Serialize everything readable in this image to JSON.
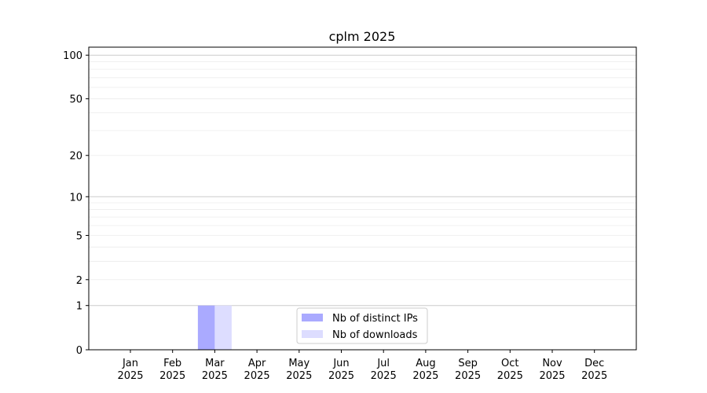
{
  "chart_data": {
    "type": "bar",
    "title": "cplm 2025",
    "xlabel": "",
    "ylabel": "",
    "y_scale": "log(1+y)",
    "ylim": [
      0,
      113
    ],
    "grid": "horizontal, major and minor",
    "legend": "lower-center",
    "categories": [
      "Jan\n2025",
      "Feb\n2025",
      "Mar\n2025",
      "Apr\n2025",
      "May\n2025",
      "Jun\n2025",
      "Jul\n2025",
      "Aug\n2025",
      "Sep\n2025",
      "Oct\n2025",
      "Nov\n2025",
      "Dec\n2025"
    ],
    "y_ticks": [
      0,
      1,
      2,
      5,
      10,
      20,
      50,
      100
    ],
    "series": [
      {
        "name": "Nb of distinct IPs",
        "color": "#aaaaff",
        "values": [
          0,
          0,
          1,
          0,
          0,
          0,
          0,
          0,
          0,
          0,
          0,
          0
        ]
      },
      {
        "name": "Nb of downloads",
        "color": "#ddddff",
        "values": [
          0,
          0,
          1,
          0,
          0,
          0,
          0,
          0,
          0,
          0,
          0,
          0
        ]
      }
    ]
  }
}
